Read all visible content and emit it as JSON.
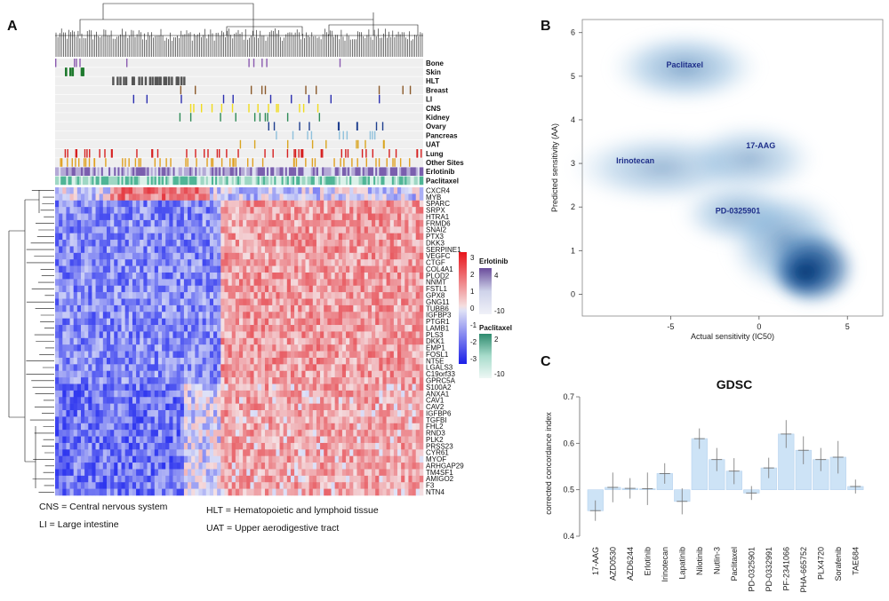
{
  "panels": {
    "a": "A",
    "b": "B",
    "c": "C"
  },
  "heatmap": {
    "tracks": [
      "Bone",
      "Skin",
      "HLT",
      "Breast",
      "LI",
      "CNS",
      "Kidney",
      "Ovary",
      "Pancreas",
      "UAT",
      "Lung",
      "Other Sites",
      "Erlotinib",
      "Paclitaxel"
    ],
    "track_colors": {
      "Bone": "#8b5bb0",
      "Skin": "#1f7a2e",
      "HLT": "#555555",
      "Breast": "#8b5a2b",
      "LI": "#2b2fb0",
      "CNS": "#f0dc1e",
      "Kidney": "#2e8b57",
      "Ovary": "#1f3f8f",
      "Pancreas": "#8fc1dc",
      "UAT": "#d9a520",
      "Lung": "#d62020",
      "Other Sites": "#e0a020"
    },
    "genes": [
      "CXCR4",
      "MYB",
      "SPARC",
      "SRPX",
      "HTRA1",
      "FRMD6",
      "SNAI2",
      "PTX3",
      "DKK3",
      "SERPINE1",
      "VEGFC",
      "CTGF",
      "COL4A1",
      "PLOD2",
      "NNMT",
      "FSTL1",
      "GPX8",
      "GNG11",
      "TUBB6",
      "IGFBP3",
      "PTGR1",
      "LAMB1",
      "PLS3",
      "DKK1",
      "EMP1",
      "FOSL1",
      "NT5E",
      "LGALS3",
      "C19orf33",
      "GPRC5A",
      "S100A2",
      "ANXA1",
      "CAV1",
      "CAV2",
      "IGFBP6",
      "TGFBI",
      "FHL2",
      "RND3",
      "PLK2",
      "PRSS23",
      "CYR61",
      "MYOF",
      "ARHGAP29",
      "TM4SF1",
      "AMIGO2",
      "F3",
      "NTN4"
    ],
    "expr_legend": {
      "ticks": [
        "3",
        "2",
        "1",
        "0",
        "-1",
        "-2",
        "-3"
      ]
    },
    "erlotinib_legend": {
      "title": "Erlotinib",
      "ticks": [
        "4",
        "-10"
      ],
      "colors": [
        "#6a4c9c",
        "#cfd3ea",
        "#f0f1f8"
      ]
    },
    "paclitaxel_legend": {
      "title": "Paclitaxel",
      "ticks": [
        "2",
        "-10"
      ],
      "colors": [
        "#2e8b6e",
        "#a8dccc",
        "#eef8f5"
      ]
    },
    "footnotes": {
      "cns": "CNS = Central nervous system",
      "li": "LI = Large intestine",
      "hlt": "HLT = Hematopoietic and lymphoid tissue",
      "uat": "UAT = Upper aerodigestive tract"
    }
  },
  "density": {
    "xlabel": "Actual sensitivity (IC50)",
    "ylabel": "Predicted sensitivity (AA)",
    "xticks": [
      -5,
      0,
      5
    ],
    "yticks": [
      0,
      1,
      2,
      3,
      4,
      5,
      6
    ],
    "xlim": [
      -10,
      7
    ],
    "ylim": [
      -0.5,
      6.3
    ],
    "annotations": [
      {
        "text": "Paclitaxel",
        "x": -4.2,
        "y": 5.2
      },
      {
        "text": "17-AAG",
        "x": 0.1,
        "y": 3.35
      },
      {
        "text": "Irinotecan",
        "x": -7,
        "y": 3.0
      },
      {
        "text": "PD-0325901",
        "x": -1.2,
        "y": 1.85
      }
    ]
  },
  "chart_data": [
    {
      "type": "bar",
      "title": "GDSC",
      "xlabel": "",
      "ylabel": "corrected concordance index",
      "ylim": [
        0.4,
        0.7
      ],
      "yticks": [
        0.4,
        0.5,
        0.6,
        0.7
      ],
      "baseline": 0.5,
      "categories": [
        "17-AAG",
        "AZD0530",
        "AZD6244",
        "Erlotinib",
        "Irinotecan",
        "Lapatinib",
        "Nilotinib",
        "Nutlin-3",
        "Paclitaxel",
        "PD-0325901",
        "PD-0332991",
        "PF-2341066",
        "PHA-665752",
        "PLX4720",
        "Sorafenib",
        "TAE684"
      ],
      "values": [
        0.455,
        0.505,
        0.503,
        0.502,
        0.535,
        0.475,
        0.61,
        0.565,
        0.54,
        0.493,
        0.547,
        0.62,
        0.585,
        0.565,
        0.57,
        0.507
      ],
      "errors": [
        0.022,
        0.032,
        0.022,
        0.035,
        0.022,
        0.028,
        0.022,
        0.025,
        0.028,
        0.015,
        0.022,
        0.03,
        0.03,
        0.025,
        0.035,
        0.015
      ]
    },
    {
      "type": "heatmap",
      "row_labels": [
        "CXCR4",
        "MYB",
        "SPARC",
        "SRPX",
        "HTRA1",
        "FRMD6",
        "SNAI2",
        "PTX3",
        "DKK3",
        "SERPINE1",
        "VEGFC",
        "CTGF",
        "COL4A1",
        "PLOD2",
        "NNMT",
        "FSTL1",
        "GPX8",
        "GNG11",
        "TUBB6",
        "IGFBP3",
        "PTGR1",
        "LAMB1",
        "PLS3",
        "DKK1",
        "EMP1",
        "FOSL1",
        "NT5E",
        "LGALS3",
        "C19orf33",
        "GPRC5A",
        "S100A2",
        "ANXA1",
        "CAV1",
        "CAV2",
        "IGFBP6",
        "TGFBI",
        "FHL2",
        "RND3",
        "PLK2",
        "PRSS23",
        "CYR61",
        "MYOF",
        "ARHGAP29",
        "TM4SF1",
        "AMIGO2",
        "F3",
        "NTN4"
      ],
      "color_range": [
        -3,
        3
      ]
    }
  ]
}
